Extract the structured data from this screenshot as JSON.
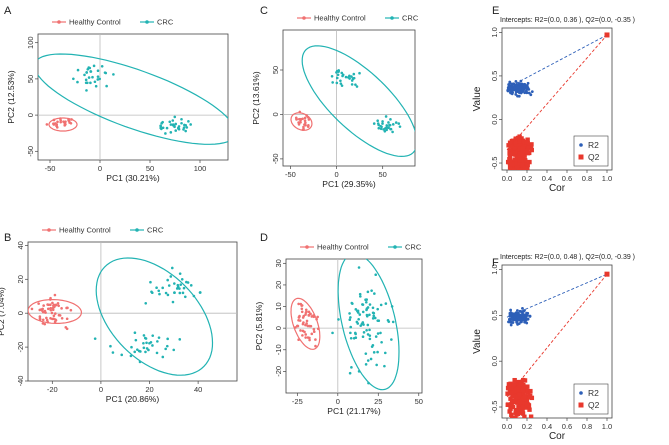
{
  "panels": [
    {
      "id": "A",
      "type": "scatter",
      "xlabel": "PC1 (30.21%)",
      "ylabel": "PC2 (12.53%)",
      "xlim": [
        -62,
        128
      ],
      "ylim": [
        -62,
        112
      ],
      "xticks": [
        -50,
        0,
        50,
        100
      ],
      "yticks": [
        -50,
        0,
        50,
        100
      ],
      "legend": [
        "Healthy Control",
        "CRC"
      ],
      "groups": [
        {
          "name": "Healthy Control",
          "color": "#f07171",
          "center": [
            -38,
            -10
          ],
          "spread": [
            6,
            4
          ],
          "n": 25,
          "seed": 11,
          "ellipse": {
            "cx": -37,
            "cy": -13,
            "rx": 14,
            "ry": 9,
            "angle": 0
          }
        },
        {
          "name": "CRC",
          "color": "#22b3b3",
          "subclusters": [
            {
              "center": [
                -5,
                52
              ],
              "spread": [
                8,
                7
              ],
              "n": 30
            },
            {
              "center": [
                72,
                -15
              ],
              "spread": [
                9,
                5
              ],
              "n": 35
            }
          ],
          "seed": 23,
          "ellipse": {
            "cx": 35,
            "cy": 22,
            "rx": 112,
            "ry": 38,
            "angle": -28
          }
        }
      ]
    },
    {
      "id": "C",
      "type": "scatter",
      "xlabel": "PC1 (29.35%)",
      "ylabel": "PC2 (13.61%)",
      "xlim": [
        -58,
        85
      ],
      "ylim": [
        -58,
        95
      ],
      "xticks": [
        -50,
        0,
        50
      ],
      "yticks": [
        -50,
        0,
        50
      ],
      "legend": [
        "Healthy Control",
        "CRC"
      ],
      "groups": [
        {
          "name": "Healthy Control",
          "color": "#f07171",
          "center": [
            -38,
            -8
          ],
          "spread": [
            5,
            5
          ],
          "n": 25,
          "seed": 31,
          "ellipse": {
            "cx": -38,
            "cy": -8,
            "rx": 12,
            "ry": 9,
            "angle": -30
          }
        },
        {
          "name": "CRC",
          "color": "#22b3b3",
          "subclusters": [
            {
              "center": [
                10,
                40
              ],
              "spread": [
                7,
                5
              ],
              "n": 30
            },
            {
              "center": [
                55,
                -12
              ],
              "spread": [
                6,
                4
              ],
              "n": 30
            }
          ],
          "seed": 37,
          "ellipse": {
            "cx": 25,
            "cy": 15,
            "rx": 82,
            "ry": 32,
            "angle": -45
          }
        }
      ]
    },
    {
      "id": "B",
      "type": "scatter",
      "xlabel": "PC1 (20.86%)",
      "ylabel": "PC2 (7.04%)",
      "xlim": [
        -30,
        56
      ],
      "ylim": [
        -40,
        42
      ],
      "xticks": [
        -20,
        0,
        20,
        40
      ],
      "yticks": [
        -40,
        -20,
        0,
        20,
        40
      ],
      "legend": [
        "Healthy Control",
        "CRC"
      ],
      "groups": [
        {
          "name": "Healthy Control",
          "color": "#f07171",
          "center": [
            -19,
            1
          ],
          "spread": [
            4,
            4
          ],
          "n": 60,
          "seed": 41,
          "ellipse": {
            "cx": -19,
            "cy": 1,
            "rx": 11,
            "ry": 7,
            "angle": -5
          }
        },
        {
          "name": "CRC",
          "color": "#22b3b3",
          "subclusters": [
            {
              "center": [
                28,
                15
              ],
              "spread": [
                6,
                5
              ],
              "n": 35
            },
            {
              "center": [
                18,
                -18
              ],
              "spread": [
                9,
                4
              ],
              "n": 35
            }
          ],
          "seed": 43,
          "ellipse": {
            "cx": 22,
            "cy": -2,
            "rx": 37,
            "ry": 20,
            "angle": -65
          }
        }
      ]
    },
    {
      "id": "D",
      "type": "scatter",
      "xlabel": "PC1 (21.17%)",
      "ylabel": "PC2 (5.81%)",
      "xlim": [
        -32,
        52
      ],
      "ylim": [
        -30,
        32
      ],
      "xticks": [
        -25,
        0,
        25,
        50
      ],
      "yticks": [
        -20,
        -10,
        0,
        10,
        20,
        30
      ],
      "legend": [
        "Healthy Control",
        "CRC"
      ],
      "groups": [
        {
          "name": "Healthy Control",
          "color": "#f07171",
          "center": [
            -20,
            2
          ],
          "spread": [
            4,
            5
          ],
          "n": 55,
          "seed": 51,
          "ellipse": {
            "cx": -20,
            "cy": 2,
            "rx": 13,
            "ry": 7,
            "angle": -60
          }
        },
        {
          "name": "CRC",
          "color": "#22b3b3",
          "subclusters": [
            {
              "center": [
                18,
                3
              ],
              "spread": [
                8,
                10
              ],
              "n": 90
            }
          ],
          "seed": 53,
          "ellipse": {
            "cx": 19,
            "cy": 3,
            "rx": 33,
            "ry": 16,
            "angle": -70
          }
        }
      ]
    },
    {
      "id": "E",
      "type": "permutation",
      "title": "Intercepts: R2=(0.0, 0.36 ), Q2=(0.0, -0.35 )",
      "xlabel": "Cor",
      "ylabel": "Value",
      "xlim": [
        -0.05,
        1.05
      ],
      "ylim": [
        -0.58,
        1.05
      ],
      "xticks": [
        0.0,
        0.2,
        0.4,
        0.6,
        0.8,
        1.0
      ],
      "yticks": [
        -0.5,
        0.0,
        0.5,
        1.0
      ],
      "legend": [
        "R2",
        "Q2"
      ],
      "r2_color": "#2d5fb8",
      "q2_color": "#e8382d",
      "r2_intercept": 0.36,
      "q2_intercept": -0.35,
      "r2_end": [
        1.0,
        0.97
      ],
      "q2_end": [
        1.0,
        0.97
      ],
      "seed": 61
    },
    {
      "id": "F",
      "type": "permutation",
      "title": "Intercepts: R2=(0.0, 0.48 ), Q2=(0.0, -0.39 )",
      "xlabel": "Cor",
      "ylabel": "Value",
      "xlim": [
        -0.05,
        1.05
      ],
      "ylim": [
        -0.62,
        1.05
      ],
      "xticks": [
        0.0,
        0.2,
        0.4,
        0.6,
        0.8,
        1.0
      ],
      "yticks": [
        -0.5,
        0.0,
        0.5,
        1.0
      ],
      "legend": [
        "R2",
        "Q2"
      ],
      "r2_color": "#2d5fb8",
      "q2_color": "#e8382d",
      "r2_intercept": 0.48,
      "q2_intercept": -0.39,
      "r2_end": [
        1.0,
        0.95
      ],
      "q2_end": [
        1.0,
        0.95
      ],
      "seed": 71
    }
  ],
  "chart_data": [
    {
      "type": "scatter",
      "title": "A",
      "xlabel": "PC1 (30.21%)",
      "ylabel": "PC2 (12.53%)",
      "legend": [
        "Healthy Control",
        "CRC"
      ],
      "series": [
        {
          "name": "Healthy Control"
        },
        {
          "name": "CRC"
        }
      ]
    },
    {
      "type": "scatter",
      "title": "C",
      "xlabel": "PC1 (29.35%)",
      "ylabel": "PC2 (13.61%)",
      "legend": [
        "Healthy Control",
        "CRC"
      ]
    },
    {
      "type": "scatter",
      "title": "B",
      "xlabel": "PC1 (20.86%)",
      "ylabel": "PC2 (7.04%)",
      "legend": [
        "Healthy Control",
        "CRC"
      ]
    },
    {
      "type": "scatter",
      "title": "D",
      "xlabel": "PC1 (21.17%)",
      "ylabel": "PC2 (5.81%)",
      "legend": [
        "Healthy Control",
        "CRC"
      ]
    },
    {
      "type": "scatter",
      "title": "Intercepts: R2=(0.0, 0.36 ), Q2=(0.0, -0.35 )",
      "xlabel": "Cor",
      "ylabel": "Value",
      "legend": [
        "R2",
        "Q2"
      ]
    },
    {
      "type": "scatter",
      "title": "Intercepts: R2=(0.0, 0.48 ), Q2=(0.0, -0.39 )",
      "xlabel": "Cor",
      "ylabel": "Value",
      "legend": [
        "R2",
        "Q2"
      ]
    }
  ]
}
